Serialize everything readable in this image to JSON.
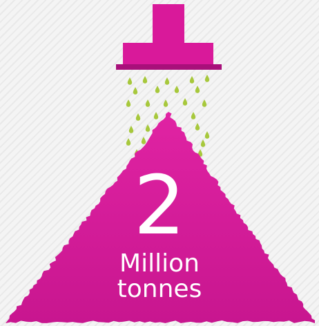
{
  "colors": {
    "magenta": "#d9199a",
    "magenta_dark": "#a8107a",
    "drop": "#a7c83c",
    "text": "#ffffff",
    "background": "#f1f1f1"
  },
  "figure": {
    "number": "2",
    "unit_line_1": "Million",
    "unit_line_2": "tonnes"
  },
  "icons": {
    "spout": "shower-head-icon",
    "drops": "water-drops-icon",
    "pile": "pile-icon"
  }
}
